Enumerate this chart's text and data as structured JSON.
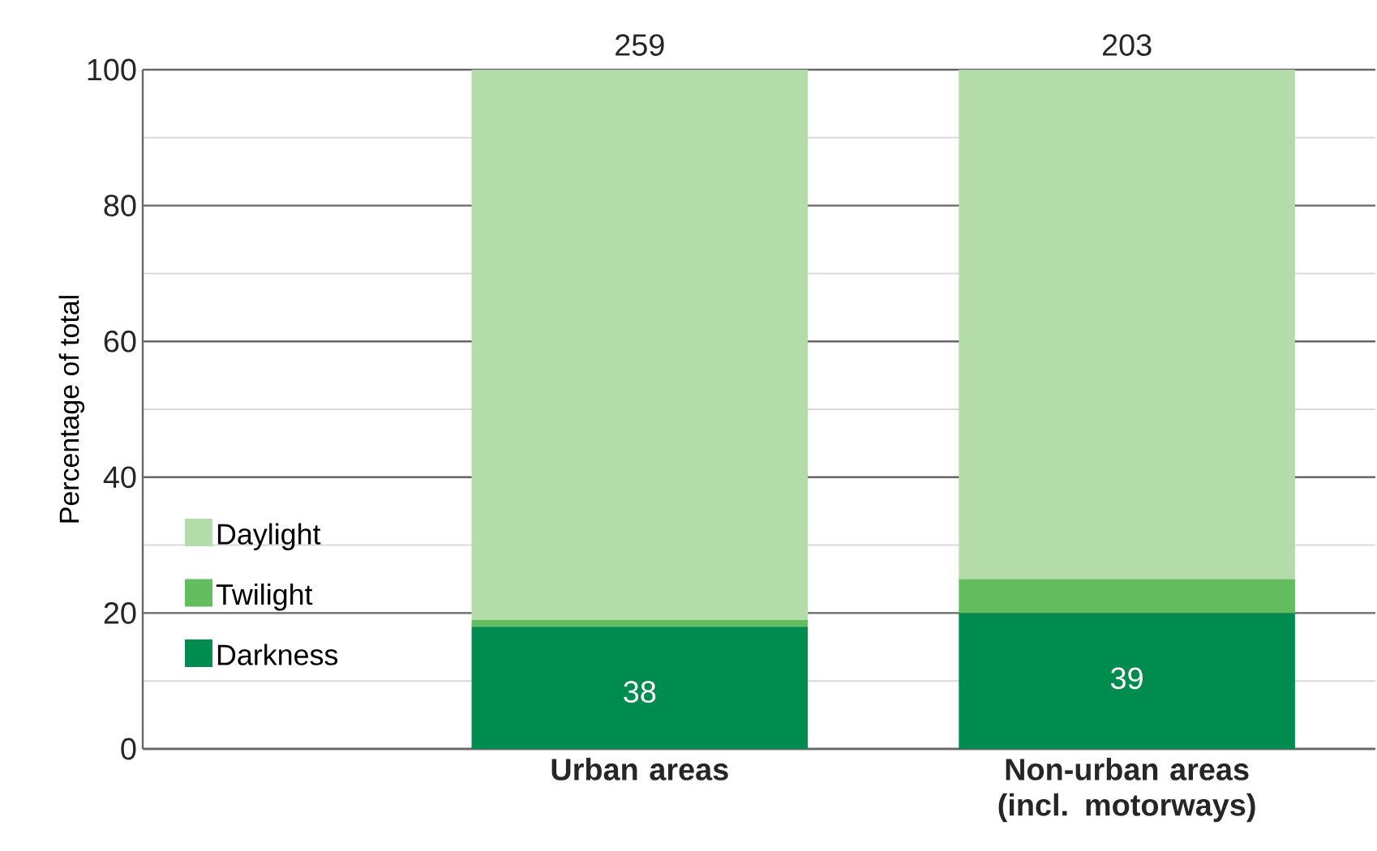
{
  "chart_data": {
    "type": "bar",
    "stacked": true,
    "ylabel": "Percentage of total",
    "categories": [
      "Urban areas",
      "Non-urban areas (incl. motorways)"
    ],
    "series": [
      {
        "name": "Darkness",
        "color": "#008c4e",
        "values": [
          18,
          20
        ]
      },
      {
        "name": "Twilight",
        "color": "#63bd5e",
        "values": [
          1,
          5
        ]
      },
      {
        "name": "Daylight",
        "color": "#b3dcaa",
        "values": [
          81,
          75
        ]
      }
    ],
    "annotations": [
      {
        "text": "38",
        "x": "Urban areas",
        "y": 18
      },
      {
        "text": "39",
        "x": "Non-urban areas (incl. motorways)",
        "y": 20
      },
      {
        "text": "259",
        "x": "Urban areas",
        "y": 100
      },
      {
        "text": "203",
        "x": "Non-urban areas (incl. motorways)",
        "y": 100
      }
    ],
    "ylim": [
      0,
      100
    ],
    "yticks": [
      0,
      20,
      40,
      60,
      80,
      100
    ],
    "grid": "y",
    "legend": "left"
  }
}
